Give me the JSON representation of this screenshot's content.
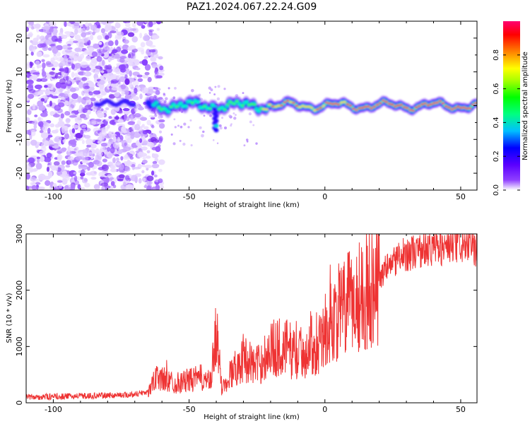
{
  "title": "PAZ1.2024.067.22.24.G09",
  "chart_data": [
    {
      "type": "heatmap",
      "title": "PAZ1.2024.067.22.24.G09",
      "xlabel": "Height of straight line (km)",
      "ylabel": "Frequency (Hz)",
      "xlim": [
        -110,
        56
      ],
      "ylim": [
        -25,
        25
      ],
      "x_ticks": [
        -100,
        -50,
        0,
        50
      ],
      "y_ticks": [
        -20,
        -10,
        0,
        10,
        20
      ],
      "colorbar": {
        "label": "Normalized spectral amplitude",
        "range": [
          0,
          1
        ],
        "ticks": [
          0.0,
          0.2,
          0.4,
          0.6,
          0.8
        ],
        "colormap": "rainbow",
        "colors": [
          "#ffffff",
          "#7f00ff",
          "#0000ff",
          "#00ffff",
          "#00ff00",
          "#ffff00",
          "#ff7f00",
          "#ff0000",
          "#ff007f"
        ]
      },
      "features": {
        "noise_region_x": [
          -110,
          -65
        ],
        "signal_center_frequency": 0,
        "signal_onset_x": -65,
        "signal_dip": {
          "x": -40,
          "frequency": -6
        }
      }
    },
    {
      "type": "line",
      "xlabel": "Height of straight line (km)",
      "ylabel": "SNR (10 * v/v)",
      "xlim": [
        -110,
        56
      ],
      "ylim": [
        0,
        3000
      ],
      "x_ticks": [
        -100,
        -50,
        0,
        50
      ],
      "y_ticks": [
        0,
        1000,
        2000,
        3000
      ],
      "color": "#ee3333",
      "x": [
        -110,
        -100,
        -90,
        -80,
        -70,
        -65,
        -62,
        -58,
        -55,
        -50,
        -45,
        -42,
        -40,
        -38,
        -35,
        -30,
        -25,
        -20,
        -15,
        -10,
        -5,
        0,
        5,
        10,
        15,
        20,
        25,
        30,
        35,
        40,
        45,
        50,
        55
      ],
      "values": [
        100,
        110,
        120,
        130,
        150,
        200,
        450,
        400,
        350,
        400,
        450,
        350,
        1300,
        250,
        500,
        800,
        650,
        950,
        1000,
        850,
        1000,
        1250,
        1600,
        1800,
        2000,
        2250,
        2500,
        2650,
        2700,
        2750,
        2750,
        2800,
        2750
      ]
    }
  ]
}
